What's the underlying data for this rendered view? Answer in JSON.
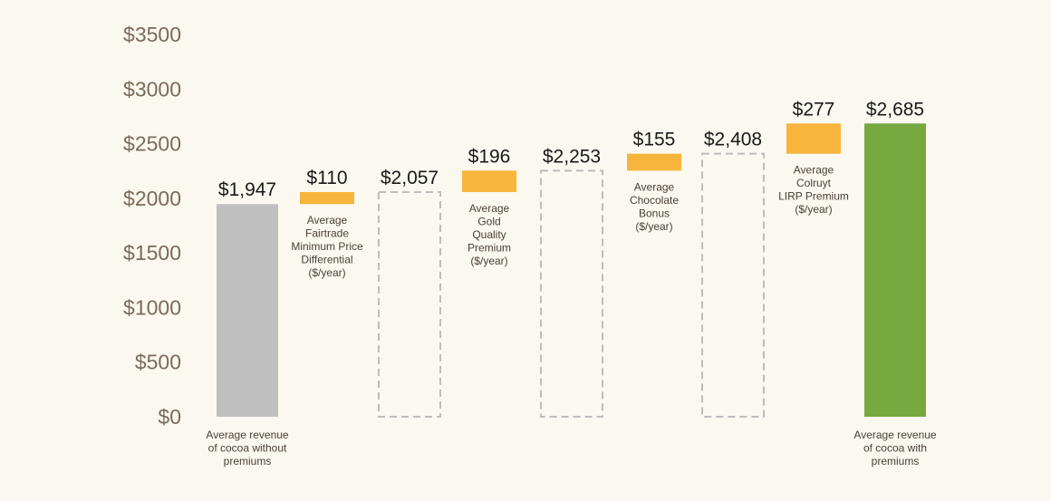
{
  "chart_data": {
    "type": "bar",
    "subtype": "waterfall",
    "title": "",
    "xlabel": "",
    "ylabel": "",
    "ylim": [
      0,
      3500
    ],
    "yticks": [
      0,
      500,
      1000,
      1500,
      2000,
      2500,
      3000,
      3500
    ],
    "ytick_labels": [
      "$0",
      "$500",
      "$1000",
      "$1500",
      "$2000",
      "$2500",
      "$3000",
      "$3500"
    ],
    "grid": false,
    "legend": "none",
    "bars": [
      {
        "kind": "total",
        "value": 1947,
        "label": "$1,947",
        "description": [
          "Average revenue",
          "of cocoa without",
          "premiums"
        ]
      },
      {
        "kind": "increment",
        "value": 110,
        "base": 1947,
        "label": "$110",
        "description": [
          "Average",
          "Fairtrade",
          "Minimum Price",
          "Differential",
          "($/year)"
        ]
      },
      {
        "kind": "subtotal",
        "value": 2057,
        "label": "$2,057",
        "description": []
      },
      {
        "kind": "increment",
        "value": 196,
        "base": 2057,
        "label": "$196",
        "description": [
          "Average",
          "Gold",
          "Quality",
          "Premium",
          "($/year)"
        ]
      },
      {
        "kind": "subtotal",
        "value": 2253,
        "label": "$2,253",
        "description": []
      },
      {
        "kind": "increment",
        "value": 155,
        "base": 2253,
        "label": "$155",
        "description": [
          "Average",
          "Chocolate",
          "Bonus",
          "($/year)"
        ]
      },
      {
        "kind": "subtotal",
        "value": 2408,
        "label": "$2,408",
        "description": []
      },
      {
        "kind": "increment",
        "value": 277,
        "base": 2408,
        "label": "$277",
        "description": [
          "Average",
          "Colruyt",
          "LIRP Premium",
          "($/year)"
        ]
      },
      {
        "kind": "final",
        "value": 2685,
        "label": "$2,685",
        "description": [
          "Average revenue",
          "of cocoa with",
          "premiums"
        ]
      }
    ],
    "colors": {
      "total": "#bfbfbf",
      "increment": "#f7b53b",
      "subtotal_outline": "#bdbdbd",
      "final": "#78a840",
      "axis_text": "#7a6a5c",
      "value_text": "#1a1a1a",
      "desc_text": "#4a4038",
      "background": "#fbf8ef"
    }
  }
}
